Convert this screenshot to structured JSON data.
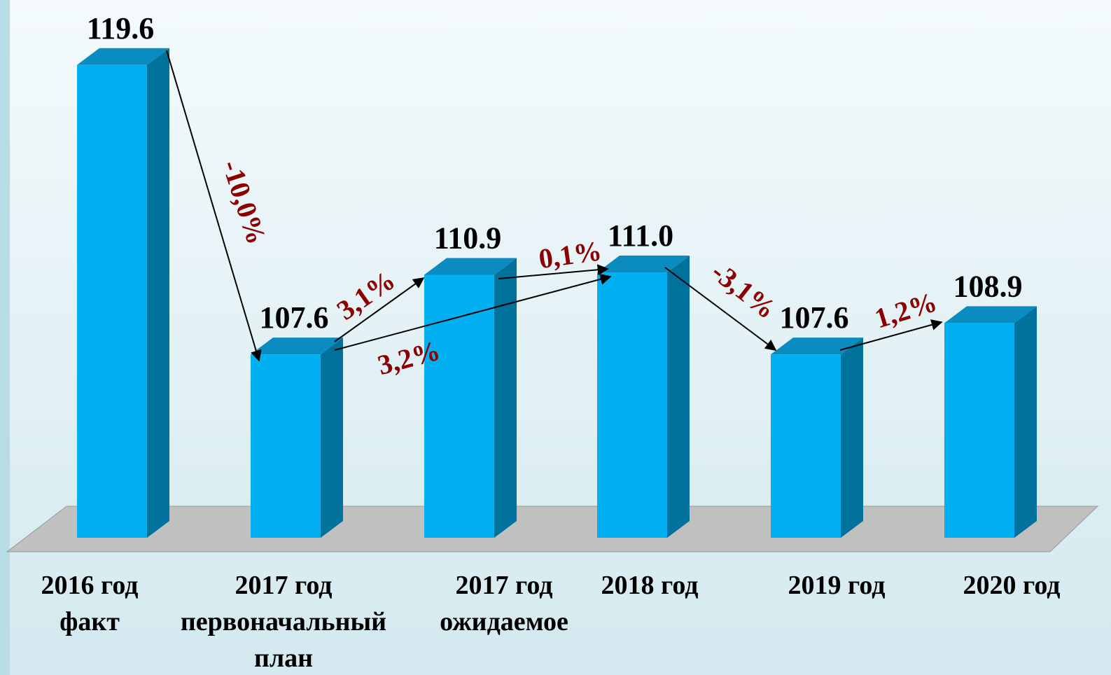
{
  "chart_data": {
    "type": "bar3d",
    "categories": [
      [
        "2016 год",
        "факт"
      ],
      [
        "2017 год",
        "первоначальный",
        "план"
      ],
      [
        "2017 год",
        "ожидаемое"
      ],
      [
        "2018 год"
      ],
      [
        "2019 год"
      ],
      [
        "2020 год"
      ]
    ],
    "values": [
      119.6,
      107.6,
      110.9,
      111.0,
      107.6,
      108.9
    ],
    "value_labels": [
      "119.6",
      "107.6",
      "110.9",
      "111.0",
      "107.6",
      "108.9"
    ],
    "ylim": [
      100,
      120
    ],
    "color": "#00b0f0",
    "annotations": [
      "-10,0%",
      "3,1%",
      "3,2%",
      "0,1%",
      "-3,1%",
      "1,2%"
    ]
  }
}
